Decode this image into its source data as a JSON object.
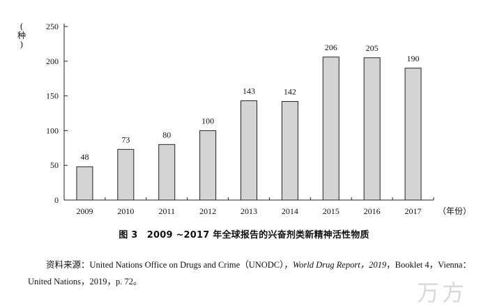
{
  "chart_data": {
    "type": "bar",
    "categories": [
      "2009",
      "2010",
      "2011",
      "2012",
      "2013",
      "2014",
      "2015",
      "2016",
      "2017"
    ],
    "values": [
      48,
      73,
      80,
      100,
      143,
      142,
      206,
      205,
      190
    ],
    "ylabel": "种",
    "xlabel": "（年份）",
    "ylim": [
      0,
      250
    ],
    "yticks": [
      0,
      50,
      100,
      150,
      200,
      250
    ],
    "grid": false,
    "bar_color": "#d4d4d4",
    "bar_edge": "#222222"
  },
  "caption": "图 3　2009 ~2017 年全球报告的兴奋剂类新精神活性物质",
  "source": {
    "prefix": "资料来源：United Nations Office on Drugs and Crime（UNODC），",
    "report": "World Drug Report，2019",
    "suffix": "，Booklet 4，Vienna：United Nations，2019，p. 72。"
  },
  "watermark": "万方"
}
